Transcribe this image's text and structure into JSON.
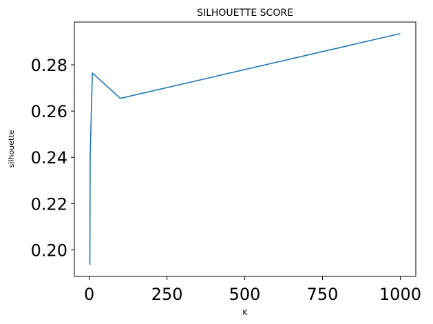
{
  "chart_data": {
    "type": "line",
    "title": "SILHOUETTE SCORE",
    "xlabel": "K",
    "ylabel": "silhouette",
    "x": [
      2,
      3,
      10,
      100,
      1000
    ],
    "series": [
      {
        "values": [
          0.1935,
          0.2405,
          0.2765,
          0.2655,
          0.2935
        ],
        "color": "#1f77b4"
      }
    ],
    "xlim": [
      -47.9,
      1049.9
    ],
    "ylim": [
      0.1885,
      0.2985
    ],
    "xticks": [
      0,
      250,
      500,
      750,
      1000
    ],
    "xtick_labels": [
      "0",
      "250",
      "500",
      "750",
      "1000"
    ],
    "yticks": [
      0.2,
      0.22,
      0.24,
      0.26,
      0.28
    ],
    "ytick_labels": [
      "0.20",
      "0.22",
      "0.24",
      "0.26",
      "0.28"
    ],
    "grid": false,
    "legend": "none"
  }
}
